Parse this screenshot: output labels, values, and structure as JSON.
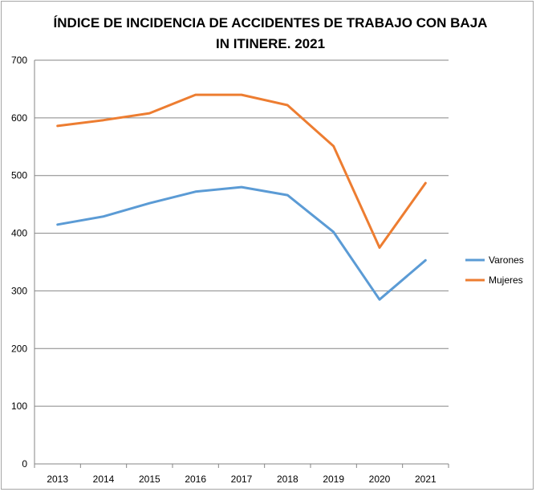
{
  "chart_data": {
    "type": "line",
    "title": "ÍNDICE DE INCIDENCIA DE ACCIDENTES DE TRABAJO CON BAJA IN ITINERE. 2021",
    "categories": [
      "2013",
      "2014",
      "2015",
      "2016",
      "2017",
      "2018",
      "2019",
      "2020",
      "2021"
    ],
    "series": [
      {
        "name": "Varones",
        "color": "#5b9bd5",
        "values": [
          415,
          429,
          452,
          472,
          480,
          466,
          402,
          285,
          353
        ]
      },
      {
        "name": "Mujeres",
        "color": "#ed7d31",
        "values": [
          586,
          596,
          608,
          640,
          640,
          622,
          551,
          375,
          487
        ]
      }
    ],
    "ylim": [
      0,
      700
    ],
    "yticks": [
      0,
      100,
      200,
      300,
      400,
      500,
      600,
      700
    ],
    "xlabel": "",
    "ylabel": "",
    "grid": true,
    "legend_position": "right"
  }
}
